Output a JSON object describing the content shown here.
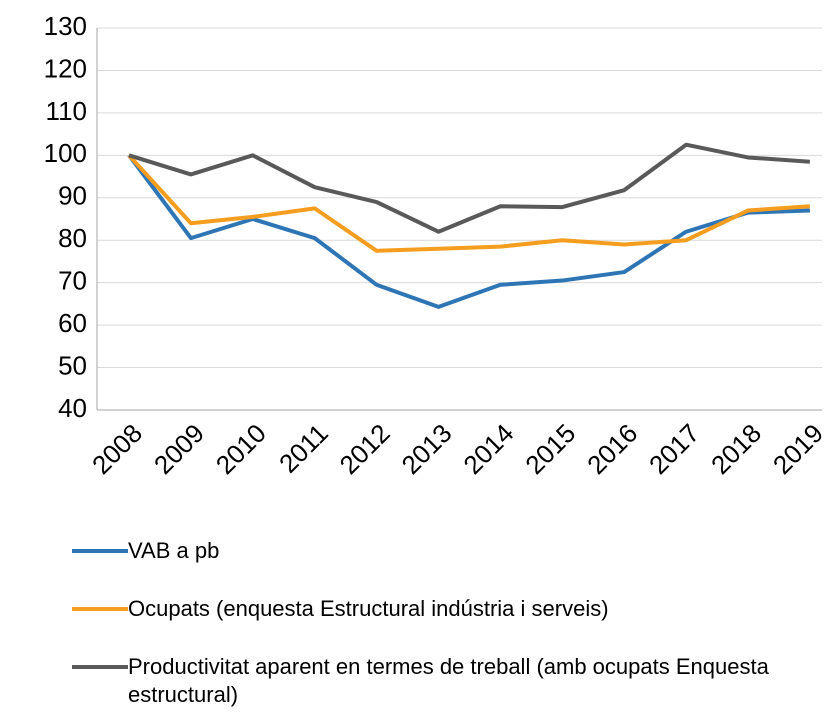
{
  "chart_data": {
    "type": "line",
    "categories": [
      "2008",
      "2009",
      "2010",
      "2011",
      "2012",
      "2013",
      "2014",
      "2015",
      "2016",
      "2017",
      "2018",
      "2019"
    ],
    "series": [
      {
        "name": "VAB a pb",
        "color": "#2e75b6",
        "values": [
          100,
          80.5,
          85,
          80.5,
          69.5,
          64.3,
          69.5,
          70.5,
          72.5,
          82,
          86.5,
          87
        ]
      },
      {
        "name": "Ocupats (enquesta Estructural indústria i serveis)",
        "color": "#f59d1f",
        "values": [
          100,
          84,
          85.5,
          87.5,
          77.5,
          78,
          78.5,
          80,
          79,
          80,
          87,
          88
        ]
      },
      {
        "name": "Productivitat aparent en termes de treball (amb ocupats Enquesta estructural)",
        "color": "#595959",
        "values": [
          100,
          95.5,
          100,
          92.5,
          89,
          82,
          88,
          87.8,
          91.8,
          102.5,
          99.5,
          98.5
        ]
      }
    ],
    "ylim": [
      40,
      130
    ],
    "yticks": [
      40,
      50,
      60,
      70,
      80,
      90,
      100,
      110,
      120,
      130
    ],
    "grid": true,
    "legend": "bottom"
  }
}
